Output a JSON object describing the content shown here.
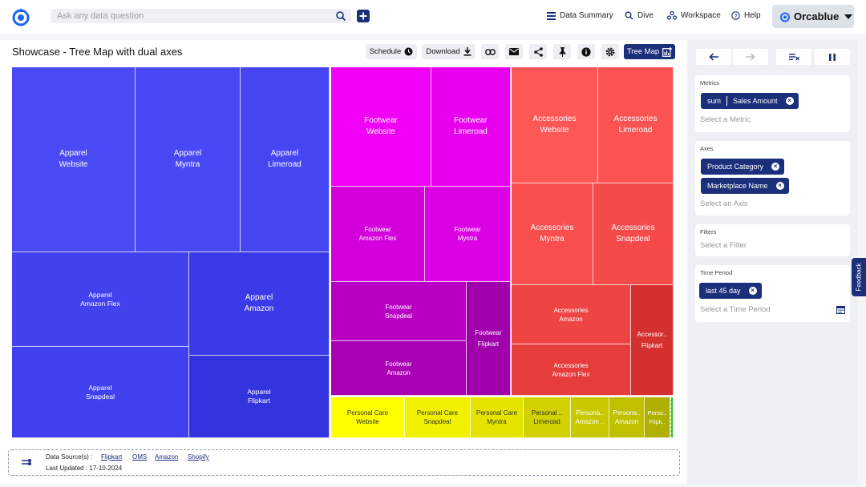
{
  "header": {
    "search_placeholder": "Ask any data question",
    "nav": [
      {
        "label": "Data Summary",
        "icon": "list-icon"
      },
      {
        "label": "Dive",
        "icon": "search-icon"
      },
      {
        "label": "Workspace",
        "icon": "workspace-icon"
      },
      {
        "label": "Help",
        "icon": "help-icon"
      }
    ],
    "brand": "Orcablue"
  },
  "page": {
    "title": "Showcase - Tree Map with dual axes",
    "toolbar": {
      "schedule_label": "Schedule",
      "download_label": "Download",
      "treemap_label": "Tree Map"
    }
  },
  "chart_data": {
    "type": "treemap",
    "metric": "Sales Amount",
    "groups": [
      {
        "category": "Apparel",
        "color": "#4040f0",
        "tiles": [
          {
            "label": "Apparel\nWebsite",
            "color": "#4a4af5"
          },
          {
            "label": "Apparel\nMyntra",
            "color": "#4848f4"
          },
          {
            "label": "Apparel\nLimeroad",
            "color": "#4545f2"
          },
          {
            "label": "Apparel\nAmazon Flex",
            "color": "#4242ef"
          },
          {
            "label": "Apparel\nAmazon",
            "color": "#3a3ae8"
          },
          {
            "label": "Apparel\nSnapdeal",
            "color": "#4040ee"
          },
          {
            "label": "Apparel\nFlipkart",
            "color": "#3434de"
          }
        ]
      },
      {
        "category": "Footwear",
        "color": "#d800e0",
        "tiles": [
          {
            "label": "Footwear\nWebsite",
            "color": "#f000f4"
          },
          {
            "label": "Footwear\nLimeroad",
            "color": "#e800ee"
          },
          {
            "label": "Footwear\nAmazon Flex",
            "color": "#d300dc"
          },
          {
            "label": "Footwear\nMyntra",
            "color": "#dc00e4"
          },
          {
            "label": "Footwear\nSnapdeal",
            "color": "#b800c2"
          },
          {
            "label": "Footwear\nFlipkart",
            "color": "#a000ac"
          },
          {
            "label": "Footwear\nAmazon",
            "color": "#aa00b4"
          }
        ]
      },
      {
        "category": "Accessories",
        "color": "#f04848",
        "tiles": [
          {
            "label": "Accessories\nWebsite",
            "color": "#ff5656"
          },
          {
            "label": "Accessories\nLimeroad",
            "color": "#fc5252"
          },
          {
            "label": "Accessories\nMyntra",
            "color": "#f84e4e"
          },
          {
            "label": "Accessories\nSnapdeal",
            "color": "#f44a4a"
          },
          {
            "label": "Accessories\nAmazon",
            "color": "#ee4444"
          },
          {
            "label": "Accessories\nAmazon Flex",
            "color": "#e63c3c"
          },
          {
            "label": "Accessor..\nFlipkart",
            "color": "#d43030"
          }
        ]
      },
      {
        "category": "Personal Care",
        "color": "#e0e000",
        "tiles": [
          {
            "label": "Personal Care\nWebsite",
            "color": "#ffff00"
          },
          {
            "label": "Personal Care\nSnapdeal",
            "color": "#f2f200"
          },
          {
            "label": "Personal Care\nMyntra",
            "color": "#e4e400"
          },
          {
            "label": "Personal ..\nLimeroad",
            "color": "#d2d200"
          },
          {
            "label": "Persona..\nAmazon ..",
            "color": "#c8c800"
          },
          {
            "label": "Persona..\nAmazon",
            "color": "#c0c000"
          },
          {
            "label": "Perso..\nFlipk..",
            "color": "#b0b000"
          },
          {
            "label": "",
            "color": "#40c040"
          }
        ]
      }
    ]
  },
  "footer": {
    "data_sources_label": "Data Source(s) :",
    "sources": [
      "Flipkart",
      "OMS",
      "Amazon",
      "Shopify"
    ],
    "last_updated": "Last Updated : 17-10-2024"
  },
  "panel": {
    "metrics": {
      "label": "Metrics",
      "chip_agg": "sum",
      "chip_value": "Sales Amount",
      "placeholder": "Select a Metric"
    },
    "axes": {
      "label": "Axes",
      "chips": [
        "Product Category",
        "Marketplace Name"
      ],
      "placeholder": "Select an Axis"
    },
    "filters": {
      "label": "Filters",
      "placeholder": "Select a Filter"
    },
    "time_period": {
      "label": "Time Period",
      "chip": "last 45 day",
      "placeholder": "Select a Time Period"
    }
  },
  "feedback_label": "Feedback",
  "colors": {
    "primary": "#1b2f7a",
    "accent": "#1e66f5"
  }
}
